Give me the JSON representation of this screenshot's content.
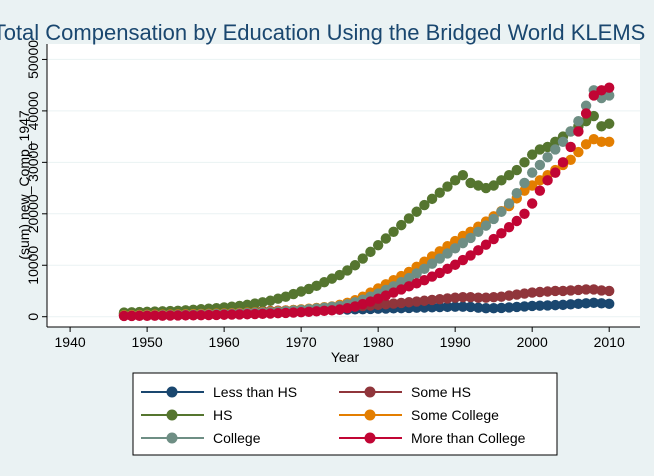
{
  "chart_data": {
    "type": "scatter",
    "title": "Total Compensation by Education Using the Bridged World KLEMS",
    "xlabel": "Year",
    "ylabel": "(sum) new_Comp_1947",
    "xlim": [
      1937,
      2014
    ],
    "ylim": [
      -2000,
      53000
    ],
    "x_ticks": [
      1940,
      1950,
      1960,
      1970,
      1980,
      1990,
      2000,
      2010
    ],
    "y_ticks": [
      0,
      10000,
      20000,
      30000,
      40000,
      50000
    ],
    "grid": "horizontal",
    "legend": "bottom",
    "x": [
      1947,
      1948,
      1949,
      1950,
      1951,
      1952,
      1953,
      1954,
      1955,
      1956,
      1957,
      1958,
      1959,
      1960,
      1961,
      1962,
      1963,
      1964,
      1965,
      1966,
      1967,
      1968,
      1969,
      1970,
      1971,
      1972,
      1973,
      1974,
      1975,
      1976,
      1977,
      1978,
      1979,
      1980,
      1981,
      1982,
      1983,
      1984,
      1985,
      1986,
      1987,
      1988,
      1989,
      1990,
      1991,
      1992,
      1993,
      1994,
      1995,
      1996,
      1997,
      1998,
      1999,
      2000,
      2001,
      2002,
      2003,
      2004,
      2005,
      2006,
      2007,
      2008,
      2009,
      2010
    ],
    "series": [
      {
        "name": "Less than HS",
        "color": "#1a476f",
        "values": [
          600,
          620,
          640,
          660,
          680,
          700,
          720,
          740,
          770,
          800,
          830,
          860,
          890,
          920,
          950,
          980,
          1010,
          1040,
          1070,
          1100,
          1130,
          1160,
          1190,
          1220,
          1250,
          1280,
          1310,
          1340,
          1370,
          1400,
          1430,
          1470,
          1510,
          1550,
          1590,
          1630,
          1670,
          1710,
          1750,
          1790,
          1830,
          1870,
          1910,
          1950,
          1950,
          1900,
          1750,
          1650,
          1650,
          1700,
          1800,
          1900,
          2000,
          2100,
          2150,
          2200,
          2250,
          2300,
          2400,
          2500,
          2600,
          2700,
          2600,
          2500
        ]
      },
      {
        "name": "Some HS",
        "color": "#90353b",
        "values": [
          500,
          510,
          520,
          530,
          550,
          570,
          590,
          610,
          640,
          670,
          700,
          740,
          780,
          820,
          860,
          900,
          950,
          1000,
          1050,
          1100,
          1160,
          1220,
          1280,
          1350,
          1420,
          1500,
          1580,
          1670,
          1760,
          1860,
          1960,
          2070,
          2180,
          2300,
          2420,
          2550,
          2680,
          2810,
          2950,
          3100,
          3250,
          3400,
          3550,
          3700,
          3800,
          3800,
          3700,
          3700,
          3800,
          3900,
          4100,
          4300,
          4500,
          4700,
          4800,
          4900,
          5000,
          5000,
          5100,
          5200,
          5300,
          5300,
          5100,
          5000
        ]
      },
      {
        "name": "HS",
        "color": "#55752f",
        "values": [
          800,
          850,
          900,
          950,
          1000,
          1050,
          1100,
          1150,
          1250,
          1350,
          1450,
          1550,
          1650,
          1800,
          1950,
          2100,
          2300,
          2550,
          2800,
          3100,
          3500,
          3900,
          4400,
          4900,
          5400,
          6000,
          6700,
          7400,
          8100,
          9000,
          10000,
          11300,
          12600,
          13900,
          15200,
          16500,
          17800,
          19100,
          20400,
          21700,
          22900,
          24100,
          25300,
          26500,
          27500,
          26000,
          25500,
          25000,
          25500,
          26500,
          27500,
          28500,
          30000,
          31500,
          32500,
          33000,
          34000,
          35000,
          36000,
          37000,
          38000,
          39000,
          37000,
          37500
        ]
      },
      {
        "name": "Some College",
        "color": "#e37e00",
        "values": [
          300,
          320,
          340,
          360,
          380,
          400,
          420,
          440,
          470,
          500,
          530,
          560,
          600,
          640,
          690,
          740,
          800,
          860,
          930,
          1010,
          1100,
          1200,
          1310,
          1430,
          1560,
          1700,
          1850,
          2000,
          2300,
          2700,
          3200,
          3900,
          4700,
          5500,
          6300,
          7100,
          7900,
          8700,
          9700,
          10700,
          11700,
          12700,
          13700,
          14700,
          15700,
          16500,
          17500,
          18500,
          19500,
          20500,
          21500,
          23000,
          24500,
          25500,
          26500,
          27500,
          28500,
          29500,
          30500,
          32000,
          33500,
          34500,
          34000,
          34000
        ]
      },
      {
        "name": "College",
        "color": "#6e8e84",
        "values": [
          200,
          220,
          240,
          260,
          280,
          300,
          320,
          340,
          370,
          400,
          430,
          460,
          500,
          540,
          590,
          640,
          700,
          760,
          830,
          910,
          1000,
          1100,
          1210,
          1330,
          1460,
          1600,
          1760,
          1920,
          2100,
          2400,
          2800,
          3300,
          3900,
          4500,
          5200,
          5900,
          6700,
          7500,
          8400,
          9300,
          10300,
          11300,
          12300,
          13300,
          14300,
          15300,
          16500,
          17700,
          19000,
          20400,
          22000,
          24000,
          26000,
          28000,
          29500,
          31000,
          32500,
          34000,
          36000,
          38000,
          41000,
          44000,
          42500,
          43000
        ]
      },
      {
        "name": "More than College",
        "color": "#c10534",
        "values": [
          150,
          160,
          170,
          180,
          190,
          200,
          220,
          240,
          260,
          280,
          300,
          320,
          350,
          380,
          410,
          440,
          480,
          520,
          570,
          620,
          680,
          740,
          810,
          880,
          960,
          1050,
          1150,
          1250,
          1400,
          1650,
          2000,
          2450,
          2950,
          3500,
          4100,
          4700,
          5300,
          5900,
          6500,
          7100,
          7800,
          8500,
          9300,
          10100,
          11000,
          11900,
          12900,
          14000,
          15100,
          16200,
          17400,
          18600,
          20000,
          22000,
          24500,
          26500,
          28000,
          30000,
          33000,
          36000,
          39500,
          43000,
          44000,
          44500
        ]
      }
    ]
  }
}
